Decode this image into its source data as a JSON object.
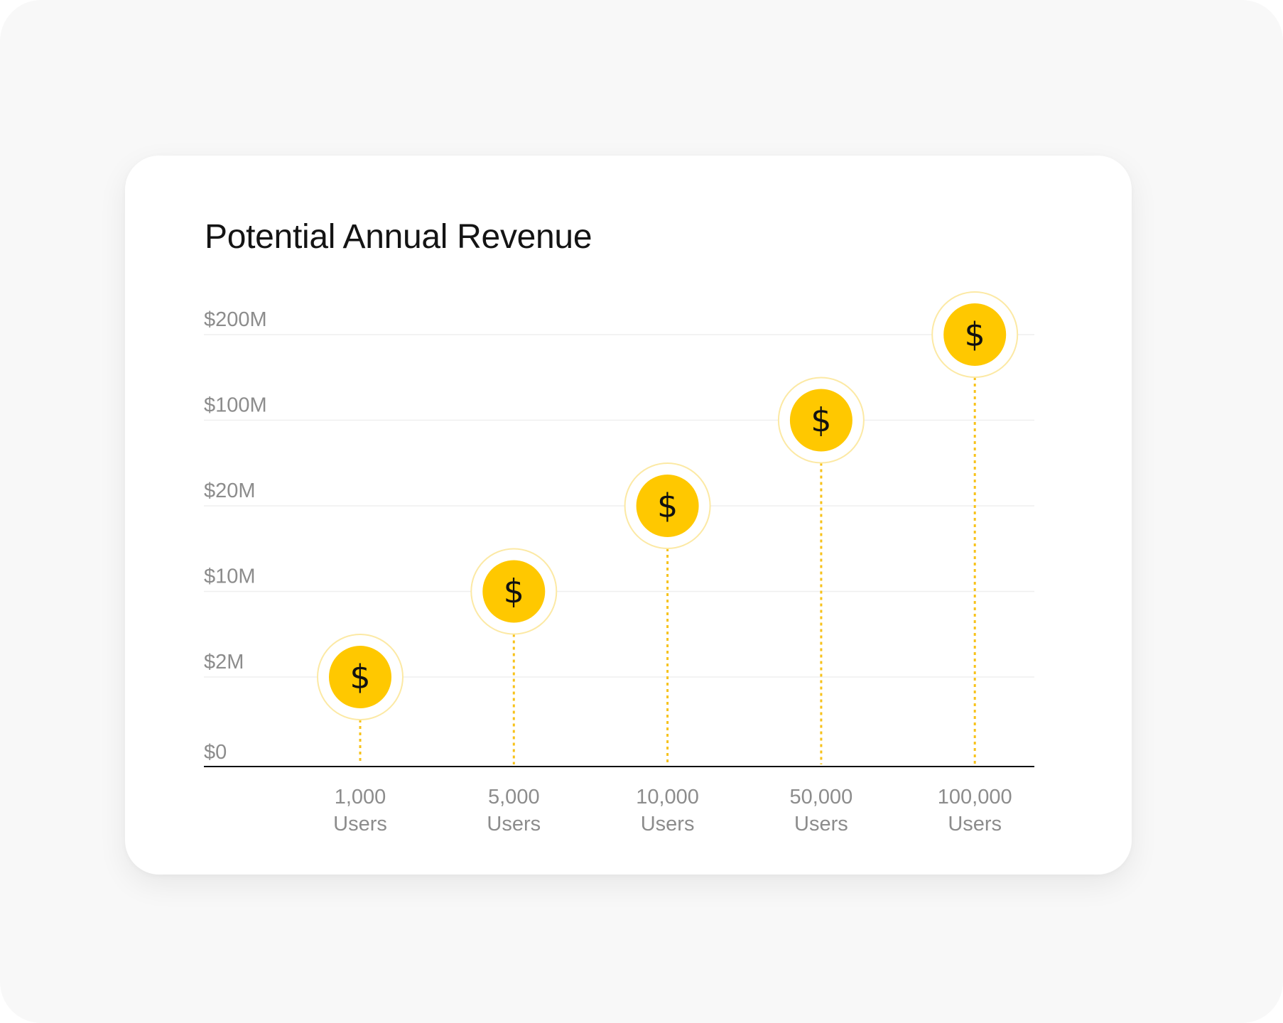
{
  "chart_data": {
    "type": "scatter",
    "title": "Potential Annual Revenue",
    "xlabel": "",
    "ylabel": "",
    "y_ticks": [
      "$200M",
      "$100M",
      "$20M",
      "$10M",
      "$2M",
      "$0"
    ],
    "y_scale": "categorical-ordinal (non-linear tick spacing)",
    "grid": "horizontal, light",
    "categories": [
      {
        "line1": "1,000",
        "line2": "Users"
      },
      {
        "line1": "5,000",
        "line2": "Users"
      },
      {
        "line1": "10,000",
        "line2": "Users"
      },
      {
        "line1": "50,000",
        "line2": "Users"
      },
      {
        "line1": "100,000",
        "line2": "Users"
      }
    ],
    "points": [
      {
        "users": "1,000",
        "revenue": "$2M"
      },
      {
        "users": "5,000",
        "revenue": "$10M"
      },
      {
        "users": "10,000",
        "revenue": "$20M"
      },
      {
        "users": "50,000",
        "revenue": "$100M"
      },
      {
        "users": "100,000",
        "revenue": "$200M"
      }
    ],
    "marker": {
      "icon": "dollar-coin-icon",
      "glyph": "$"
    }
  },
  "colors": {
    "coin": "#FFC800",
    "coin_ring": "#FCE9A4",
    "stem": "#F7C21A",
    "glyph": "#111111",
    "axis": "#111111",
    "grid": "#EFEFEF"
  }
}
